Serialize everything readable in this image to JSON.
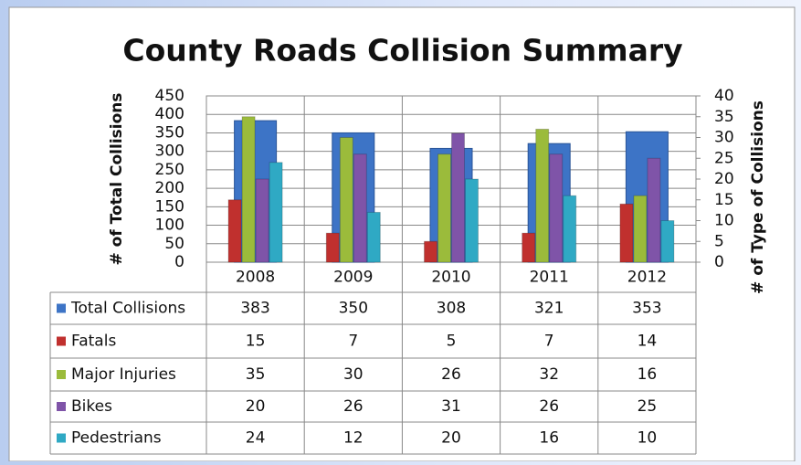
{
  "chart_data": {
    "type": "bar",
    "title": "County Roads Collision Summary",
    "y_label": "# of Total Collisions",
    "y2_label": "# of Type of Collisions",
    "categories": [
      "2008",
      "2009",
      "2010",
      "2011",
      "2012"
    ],
    "series": [
      {
        "name": "Total Collisions",
        "color": "#3d74c6",
        "values": [
          383,
          350,
          308,
          321,
          353
        ]
      },
      {
        "name": "Fatals",
        "color": "#c0302e",
        "axis": "y2",
        "values": [
          15,
          7,
          5,
          7,
          14
        ]
      },
      {
        "name": "Major Injuries",
        "color": "#9bbb3b",
        "axis": "y2",
        "values": [
          35,
          30,
          26,
          32,
          16
        ]
      },
      {
        "name": "Bikes",
        "color": "#7f54a8",
        "axis": "y2",
        "values": [
          20,
          26,
          31,
          26,
          25
        ]
      },
      {
        "name": "Pedestrians",
        "color": "#2fa9c4",
        "axis": "y2",
        "values": [
          24,
          12,
          20,
          16,
          10
        ]
      }
    ],
    "ylim": [
      0,
      450
    ],
    "yticks": [
      0,
      50,
      100,
      150,
      200,
      250,
      300,
      350,
      400,
      450
    ],
    "y2lim": [
      0,
      40
    ],
    "y2ticks": [
      0,
      5,
      10,
      15,
      20,
      25,
      30,
      35,
      40
    ],
    "grid": true,
    "data_table": true
  }
}
